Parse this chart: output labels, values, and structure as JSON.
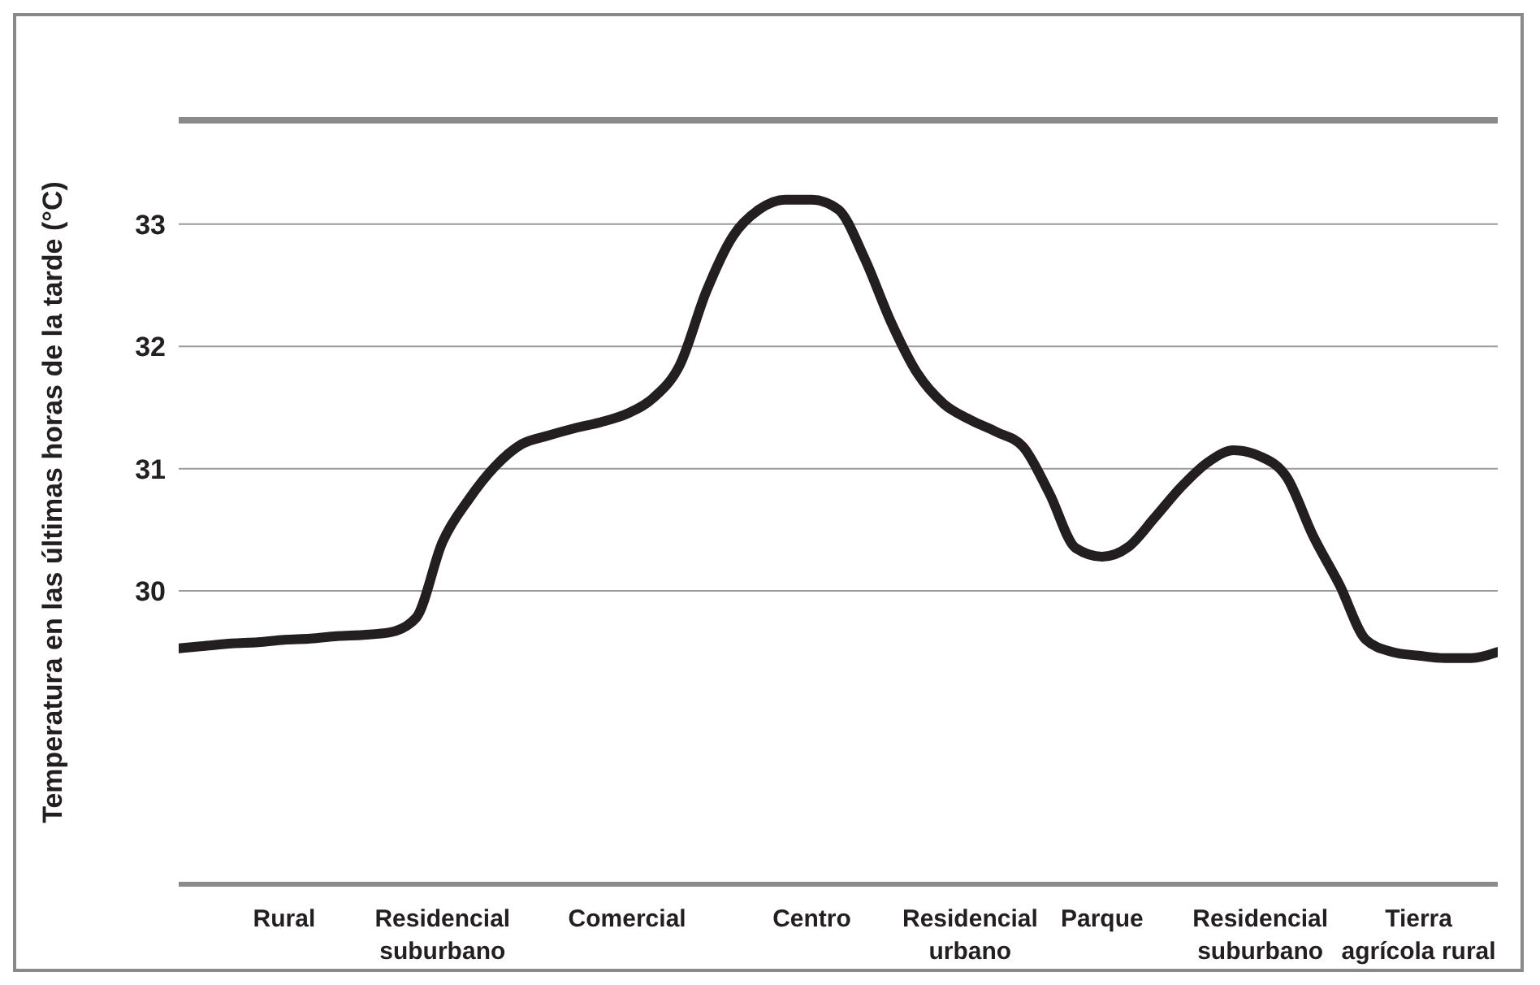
{
  "chart_data": {
    "type": "line",
    "ylabel": "Temperatura en las últimas horas de la tarde (°C)",
    "categories": [
      null,
      null,
      null,
      null,
      "Rural",
      null,
      null,
      null,
      null,
      null,
      "Residencial\nsuburbano",
      null,
      null,
      null,
      null,
      null,
      null,
      "Comercial",
      null,
      null,
      null,
      null,
      null,
      null,
      "Centro",
      null,
      null,
      null,
      null,
      null,
      "Residencial\nurbano",
      null,
      null,
      null,
      null,
      "Parque",
      null,
      null,
      null,
      null,
      null,
      "Residencial\nsuburbano",
      null,
      null,
      null,
      null,
      null,
      "Tierra\nagrícola rural",
      null,
      null,
      null
    ],
    "series": [
      {
        "color": "#231f20",
        "values": [
          29.53,
          29.55,
          29.57,
          29.58,
          29.6,
          29.61,
          29.63,
          29.64,
          29.66,
          29.78,
          30.4,
          30.75,
          31.02,
          31.2,
          31.27,
          31.33,
          31.38,
          31.45,
          31.58,
          31.85,
          32.45,
          32.9,
          33.12,
          33.2,
          33.2,
          33.12,
          32.72,
          32.2,
          31.78,
          31.53,
          31.4,
          31.3,
          31.18,
          30.8,
          30.35,
          30.28,
          30.36,
          30.6,
          30.85,
          31.05,
          31.15,
          31.1,
          30.93,
          30.45,
          30.05,
          29.6,
          29.5,
          29.47,
          29.45,
          29.45,
          29.5
        ]
      }
    ],
    "ylim": [
      27.6,
      33.85
    ],
    "yticks": [
      30,
      31,
      32,
      33
    ],
    "grid": "y",
    "marker": "none",
    "line_style": "solid",
    "legend": false
  }
}
